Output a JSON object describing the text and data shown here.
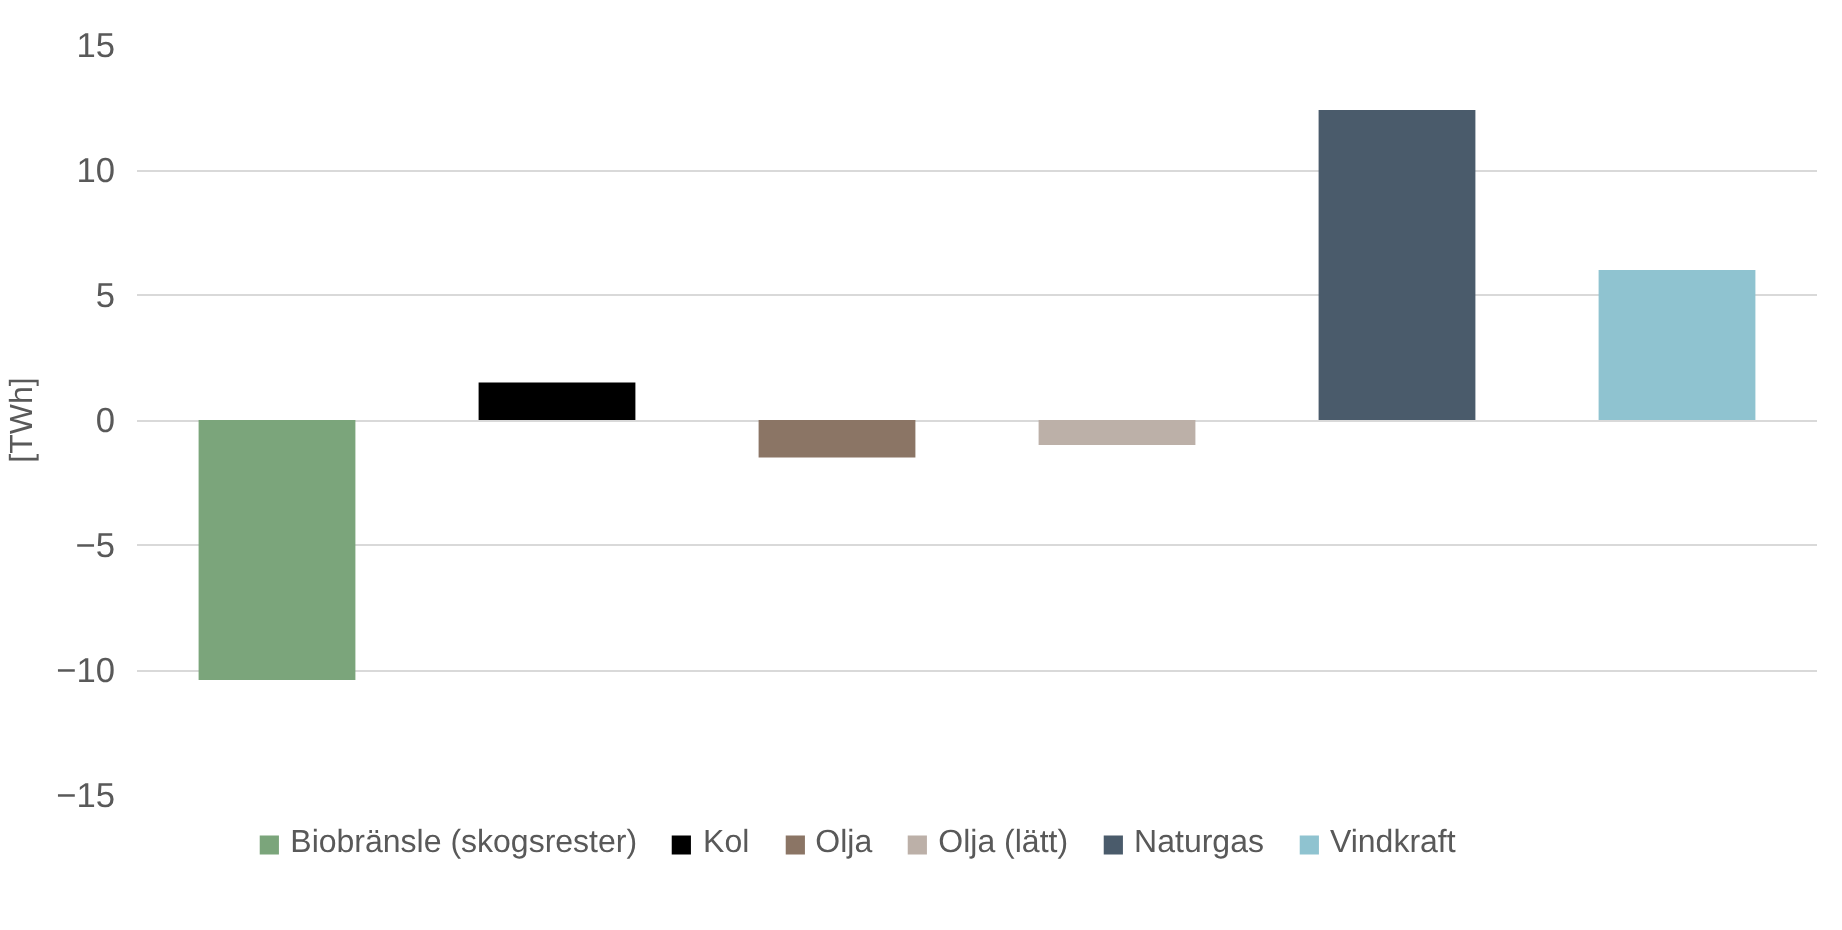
{
  "chart_data": {
    "type": "bar",
    "ylabel": "[TWh]",
    "categories": [
      null,
      null,
      null,
      null,
      null,
      null
    ],
    "series": [
      {
        "name": "Biobränsle (skogsrester)",
        "color": "#7ba57b",
        "values": [
          -10.4,
          null,
          null,
          null,
          null,
          null
        ]
      },
      {
        "name": "Kol",
        "color": "#000000",
        "values": [
          null,
          1.5,
          null,
          null,
          null,
          null
        ]
      },
      {
        "name": "Olja",
        "color": "#8b7565",
        "values": [
          null,
          null,
          -1.5,
          null,
          null,
          null
        ]
      },
      {
        "name": "Olja (lätt)",
        "color": "#bcb0a8",
        "values": [
          null,
          null,
          null,
          -1.0,
          null,
          null
        ]
      },
      {
        "name": "Naturgas",
        "color": "#4a5b6b",
        "values": [
          null,
          null,
          null,
          null,
          12.4,
          null
        ]
      },
      {
        "name": "Vindkraft",
        "color": "#8fc3d0",
        "values": [
          null,
          null,
          null,
          null,
          null,
          6.0
        ]
      }
    ],
    "ylim": [
      -15,
      15
    ],
    "yticks": [
      -15,
      -10,
      -5,
      0,
      5,
      10,
      15
    ],
    "grid": "y",
    "legend": "bottom"
  }
}
